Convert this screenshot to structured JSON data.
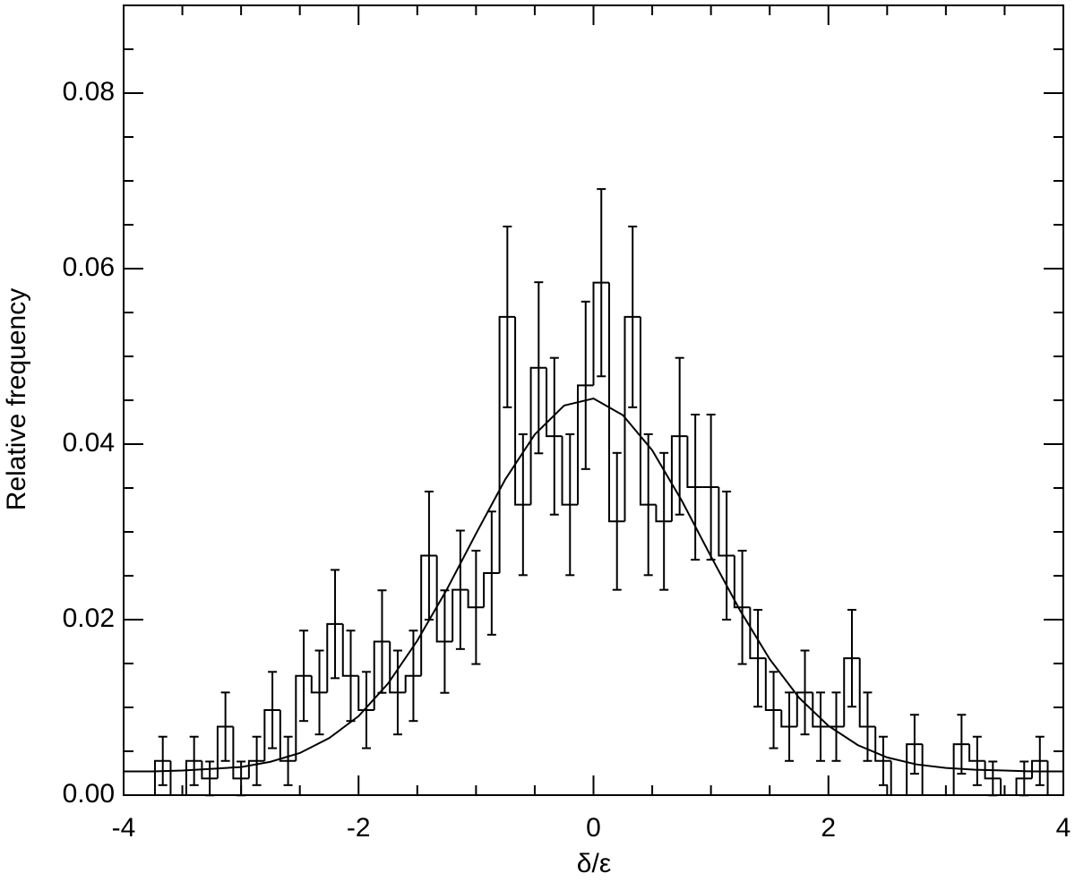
{
  "chart_data": {
    "type": "histogram",
    "x_label": "δ/ε",
    "y_label": "Relative frequency",
    "xlim": [
      -4,
      4
    ],
    "ylim": [
      0,
      0.09
    ],
    "xticks": [
      -4,
      -2,
      0,
      2,
      4
    ],
    "xticks_minor": [
      -3.5,
      -3,
      -2.5,
      -1.5,
      -1,
      -0.5,
      0.5,
      1,
      1.5,
      2.5,
      3,
      3.5
    ],
    "yticks": [
      {
        "value": 0,
        "label": "0.00"
      },
      0.02,
      0.04,
      0.06,
      0.08
    ],
    "yticks_minor": [
      0.005,
      0.01,
      0.015,
      0.025,
      0.03,
      0.035,
      0.045,
      0.05,
      0.055,
      0.065,
      0.07,
      0.075,
      0.085
    ],
    "color": "#000000",
    "bins": [
      -4,
      -3.8667,
      -3.7333,
      -3.6,
      -3.4667,
      -3.3333,
      -3.2,
      -3.0667,
      -2.9333,
      -2.8,
      -2.6667,
      -2.5333,
      -2.4,
      -2.2667,
      -2.1333,
      -2,
      -1.8667,
      -1.7333,
      -1.6,
      -1.4667,
      -1.3333,
      -1.2,
      -1.0667,
      -0.9333,
      -0.8,
      -0.6667,
      -0.5333,
      -0.4,
      -0.2667,
      -0.1333,
      0,
      0.1333,
      0.2667,
      0.4,
      0.5333,
      0.6667,
      0.8,
      0.9333,
      1.0667,
      1.2,
      1.3333,
      1.4667,
      1.6,
      1.7333,
      1.8667,
      2,
      2.1333,
      2.2667,
      2.4,
      2.5333,
      2.6667,
      2.8,
      2.9333,
      3.0667,
      3.2,
      3.3333,
      3.4667,
      3.6,
      3.7333,
      3.8667,
      4
    ],
    "values": [
      0,
      0,
      0.0039,
      0,
      0.0039,
      0.0019,
      0.0078,
      0.0019,
      0.0039,
      0.0097,
      0.0039,
      0.0136,
      0.0117,
      0.0195,
      0.0136,
      0.0097,
      0.0175,
      0.0117,
      0.0136,
      0.0273,
      0.0175,
      0.0234,
      0.0214,
      0.0253,
      0.0545,
      0.0331,
      0.0487,
      0.0409,
      0.0331,
      0.0467,
      0.0584,
      0.0312,
      0.0545,
      0.0331,
      0.0312,
      0.0409,
      0.0351,
      0.0351,
      0.0273,
      0.0214,
      0.0156,
      0.0097,
      0.0078,
      0.0117,
      0.0078,
      0.0078,
      0.0156,
      0.0078,
      0.0039,
      0,
      0.0058,
      0,
      0,
      0.0058,
      0.0039,
      0.0019,
      0,
      0.0019,
      0.0039,
      0
    ],
    "errors": [
      0,
      0,
      0.00276,
      0,
      0.00276,
      0.00193,
      0.0039,
      0.00193,
      0.00276,
      0.00435,
      0.00276,
      0.00515,
      0.00478,
      0.00617,
      0.00515,
      0.00435,
      0.00584,
      0.00478,
      0.00515,
      0.0073,
      0.00584,
      0.00675,
      0.00646,
      0.00702,
      0.0103,
      0.00803,
      0.00975,
      0.00893,
      0.00803,
      0.00954,
      0.01067,
      0.0078,
      0.0103,
      0.00803,
      0.0078,
      0.00893,
      0.00827,
      0.00827,
      0.0073,
      0.00646,
      0.00552,
      0.00435,
      0.0039,
      0.00478,
      0.0039,
      0.0039,
      0.00552,
      0.0039,
      0.00276,
      0,
      0.00336,
      0,
      0,
      0.00336,
      0.00276,
      0.00193,
      0,
      0.00193,
      0.00276,
      0
    ],
    "fit": {
      "x": [
        -4,
        -3.75,
        -3.5,
        -3.25,
        -3,
        -2.75,
        -2.5,
        -2.25,
        -2,
        -1.75,
        -1.5,
        -1.25,
        -1,
        -0.75,
        -0.5,
        -0.25,
        0,
        0.25,
        0.5,
        0.75,
        1,
        1.25,
        1.5,
        1.75,
        2,
        2.25,
        2.5,
        2.75,
        3,
        3.25,
        3.5,
        3.75,
        4
      ],
      "values": [
        0.0027,
        0.0027,
        0.0028,
        0.003,
        0.0032,
        0.0038,
        0.0048,
        0.0065,
        0.009,
        0.0127,
        0.0176,
        0.0234,
        0.0298,
        0.036,
        0.0411,
        0.0444,
        0.0452,
        0.0433,
        0.0393,
        0.0336,
        0.0272,
        0.021,
        0.0155,
        0.0111,
        0.0079,
        0.0057,
        0.0043,
        0.0035,
        0.0031,
        0.0029,
        0.0028,
        0.0027,
        0.0027
      ]
    }
  }
}
